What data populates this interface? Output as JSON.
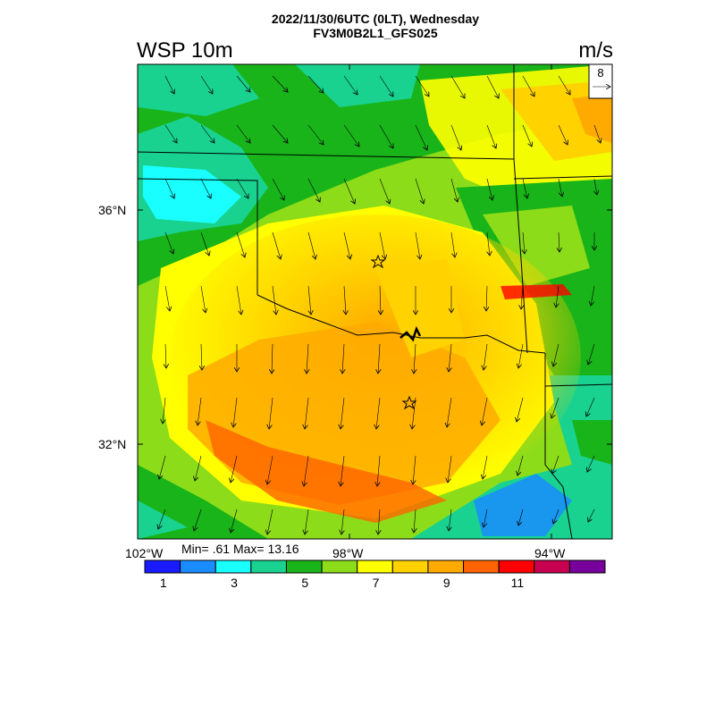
{
  "header": {
    "line1": "2022/11/30/6UTC (0LT), Wednesday",
    "line2": "FV3M0B2L1_GFS025"
  },
  "map": {
    "variable": "WSP 10m",
    "units": "m/s",
    "vector_ref": "8",
    "lat_labels": [
      "36°N",
      "32°N"
    ],
    "lon_labels": [
      "102°W",
      "98°W",
      "94°W"
    ],
    "stats": "Min= .61 Max= 13.16"
  },
  "colorbar": {
    "colors": [
      "#1a1aff",
      "#1a8cff",
      "#19ffff",
      "#19d290",
      "#19b419",
      "#8cdc19",
      "#ffff00",
      "#ffd200",
      "#ffaa00",
      "#ff6400",
      "#ff0000",
      "#c80050",
      "#78009c"
    ],
    "labels": [
      "1",
      "3",
      "5",
      "7",
      "9",
      "11"
    ]
  }
}
